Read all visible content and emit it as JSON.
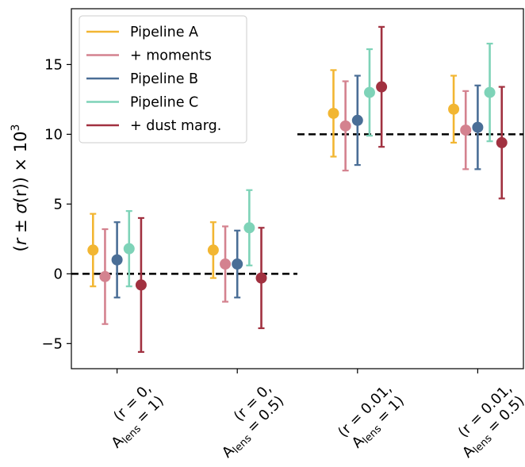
{
  "chart_data": {
    "type": "errorbar",
    "ylabel_parts": {
      "open": "(",
      "r": "r",
      "pm": " ± ",
      "sigma": "σ",
      "paren_r": "(r)",
      "close": ") × 10",
      "exp": "3"
    },
    "categories": [
      {
        "line1": "(r = 0,",
        "line2_main": "A",
        "line2_sub": "lens",
        "line2_tail": " = 1)"
      },
      {
        "line1": "(r = 0,",
        "line2_main": "A",
        "line2_sub": "lens",
        "line2_tail": " = 0.5)"
      },
      {
        "line1": "(r = 0.01,",
        "line2_main": "A",
        "line2_sub": "lens",
        "line2_tail": " = 1)"
      },
      {
        "line1": "(r = 0.01,",
        "line2_main": "A",
        "line2_sub": "lens",
        "line2_tail": " = 0.5)"
      }
    ],
    "ylim": [
      -6.8,
      19
    ],
    "yticks": [
      -5,
      0,
      5,
      10,
      15
    ],
    "ytick_labels": [
      "−5",
      "0",
      "5",
      "10",
      "15"
    ],
    "xlim": [
      -0.38,
      3.38
    ],
    "series": [
      {
        "name": "Pipeline A",
        "color": "#f2b632",
        "values": [
          1.7,
          1.7,
          11.5,
          11.8
        ],
        "errors": [
          2.6,
          2.0,
          3.1,
          2.4
        ]
      },
      {
        "name": "+ moments",
        "color": "#d4828f",
        "values": [
          -0.2,
          0.7,
          10.6,
          10.3
        ],
        "errors": [
          3.4,
          2.7,
          3.2,
          2.8
        ]
      },
      {
        "name": "Pipeline B",
        "color": "#4a6e96",
        "values": [
          1.0,
          0.7,
          11.0,
          10.5
        ],
        "errors": [
          2.7,
          2.4,
          3.2,
          3.0
        ]
      },
      {
        "name": "Pipeline C",
        "color": "#7ed3b8",
        "values": [
          1.8,
          3.3,
          13.0,
          13.0
        ],
        "errors": [
          2.7,
          2.7,
          3.1,
          3.5
        ]
      },
      {
        "name": "+ dust marg.",
        "color": "#a13140",
        "values": [
          -0.8,
          -0.3,
          13.4,
          9.4
        ],
        "errors": [
          4.8,
          3.6,
          4.3,
          4.0
        ]
      }
    ],
    "offsets": [
      -0.2,
      -0.1,
      0.0,
      0.1,
      0.2
    ],
    "reference_lines": [
      {
        "value": 0,
        "x_from": -0.38,
        "x_to": 1.5
      },
      {
        "value": 10,
        "x_from": 1.5,
        "x_to": 3.38
      }
    ],
    "legend_position": "upper-left",
    "grid": false
  }
}
